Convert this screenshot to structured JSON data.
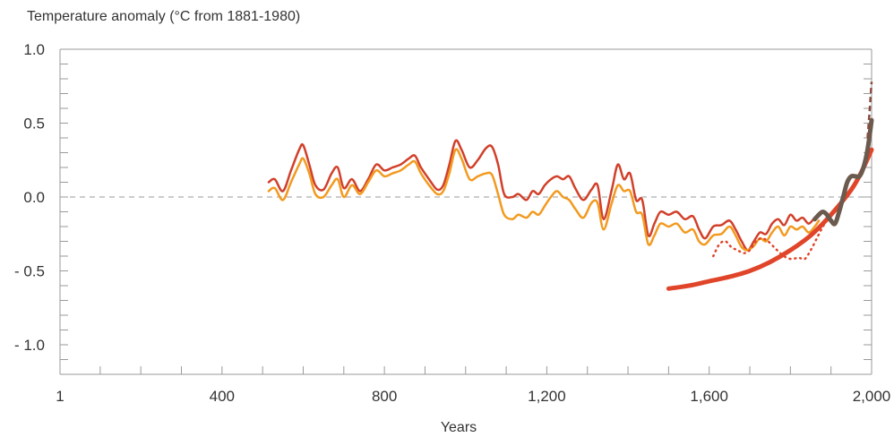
{
  "chart_data": {
    "type": "line",
    "ylabel": "Temperature anomaly (°C from 1881-1980)",
    "xlabel": "Years",
    "xlim": [
      1,
      2000
    ],
    "ylim": [
      -1.2,
      1.0
    ],
    "x_ticks": [
      1,
      400,
      800,
      1200,
      1600,
      2000
    ],
    "x_tick_labels": [
      "1",
      "400",
      "800",
      "1,200",
      "1,600",
      "2,000"
    ],
    "y_ticks": [
      1.0,
      0.5,
      0.0,
      -0.5,
      -1.0
    ],
    "y_tick_labels": [
      "1.0",
      "0.5",
      "0.0",
      "- 0.5",
      "- 1.0"
    ],
    "grid": false,
    "zero_line": true,
    "series": [
      {
        "color": "#d1402a",
        "style": "solid",
        "width": 2.5,
        "x": [
          515,
          530,
          550,
          570,
          590,
          600,
          615,
          630,
          650,
          670,
          685,
          700,
          720,
          740,
          760,
          780,
          800,
          820,
          840,
          860,
          875,
          890,
          910,
          930,
          945,
          960,
          975,
          990,
          1010,
          1030,
          1050,
          1065,
          1080,
          1095,
          1115,
          1130,
          1150,
          1165,
          1180,
          1195,
          1210,
          1225,
          1240,
          1255,
          1270,
          1290,
          1310,
          1325,
          1340,
          1360,
          1375,
          1390,
          1405,
          1420,
          1435,
          1450,
          1465,
          1480,
          1500,
          1520,
          1540,
          1560,
          1575,
          1590,
          1610,
          1630,
          1650,
          1665,
          1680,
          1695,
          1710,
          1725,
          1740,
          1755,
          1770,
          1785,
          1800,
          1815,
          1830,
          1845,
          1860,
          1870
        ],
        "y": [
          0.1,
          0.12,
          0.04,
          0.18,
          0.32,
          0.35,
          0.22,
          0.08,
          0.05,
          0.16,
          0.2,
          0.06,
          0.12,
          0.04,
          0.12,
          0.22,
          0.18,
          0.2,
          0.22,
          0.26,
          0.28,
          0.2,
          0.12,
          0.05,
          0.08,
          0.22,
          0.38,
          0.32,
          0.2,
          0.25,
          0.33,
          0.34,
          0.22,
          0.02,
          0.0,
          0.02,
          -0.02,
          0.04,
          0.02,
          0.08,
          0.12,
          0.14,
          0.12,
          0.14,
          0.06,
          -0.02,
          0.05,
          0.08,
          -0.15,
          0.05,
          0.22,
          0.12,
          0.16,
          -0.02,
          -0.02,
          -0.26,
          -0.18,
          -0.1,
          -0.12,
          -0.1,
          -0.15,
          -0.13,
          -0.22,
          -0.28,
          -0.2,
          -0.19,
          -0.16,
          -0.22,
          -0.3,
          -0.36,
          -0.3,
          -0.24,
          -0.25,
          -0.18,
          -0.15,
          -0.19,
          -0.12,
          -0.16,
          -0.14,
          -0.18,
          -0.14,
          -0.12
        ]
      },
      {
        "color": "#f29a1f",
        "style": "solid",
        "width": 2.5,
        "x": [
          515,
          530,
          550,
          570,
          590,
          600,
          615,
          630,
          650,
          670,
          685,
          700,
          720,
          740,
          760,
          780,
          800,
          820,
          840,
          860,
          875,
          890,
          910,
          930,
          945,
          960,
          975,
          990,
          1010,
          1030,
          1050,
          1065,
          1080,
          1095,
          1115,
          1130,
          1150,
          1165,
          1180,
          1195,
          1210,
          1225,
          1240,
          1255,
          1270,
          1290,
          1310,
          1325,
          1340,
          1360,
          1375,
          1390,
          1405,
          1420,
          1435,
          1450,
          1465,
          1480,
          1500,
          1520,
          1540,
          1560,
          1575,
          1590,
          1610,
          1630,
          1650,
          1665,
          1680,
          1695,
          1710,
          1725,
          1740,
          1755,
          1770,
          1785,
          1800,
          1815,
          1830,
          1845,
          1860,
          1870
        ],
        "y": [
          0.04,
          0.06,
          -0.02,
          0.1,
          0.22,
          0.26,
          0.16,
          0.02,
          0.0,
          0.08,
          0.12,
          0.0,
          0.08,
          0.02,
          0.1,
          0.18,
          0.14,
          0.16,
          0.18,
          0.22,
          0.24,
          0.16,
          0.08,
          0.02,
          0.04,
          0.16,
          0.32,
          0.26,
          0.12,
          0.14,
          0.16,
          0.15,
          0.02,
          -0.12,
          -0.15,
          -0.12,
          -0.14,
          -0.1,
          -0.12,
          -0.06,
          0.0,
          0.04,
          0.0,
          -0.02,
          -0.08,
          -0.14,
          -0.04,
          -0.04,
          -0.22,
          -0.04,
          0.08,
          0.04,
          0.04,
          -0.1,
          -0.12,
          -0.32,
          -0.26,
          -0.18,
          -0.2,
          -0.18,
          -0.24,
          -0.22,
          -0.3,
          -0.32,
          -0.26,
          -0.25,
          -0.2,
          -0.26,
          -0.34,
          -0.36,
          -0.33,
          -0.28,
          -0.3,
          -0.24,
          -0.2,
          -0.26,
          -0.2,
          -0.22,
          -0.2,
          -0.24,
          -0.2,
          -0.16
        ]
      },
      {
        "color": "#e0452a",
        "style": "dotted",
        "width": 2,
        "x": [
          1610,
          1625,
          1640,
          1655,
          1670,
          1685,
          1700,
          1715,
          1730,
          1745,
          1760,
          1775,
          1790,
          1805,
          1820,
          1835,
          1850,
          1865,
          1880,
          1895
        ],
        "y": [
          -0.4,
          -0.32,
          -0.3,
          -0.34,
          -0.36,
          -0.38,
          -0.36,
          -0.3,
          -0.28,
          -0.3,
          -0.34,
          -0.38,
          -0.41,
          -0.42,
          -0.41,
          -0.42,
          -0.36,
          -0.28,
          -0.2,
          -0.14
        ]
      },
      {
        "color": "#e0452a",
        "style": "solid",
        "width": 5,
        "x": [
          1500,
          1550,
          1600,
          1650,
          1700,
          1750,
          1800,
          1850,
          1900,
          1950,
          1975,
          2000
        ],
        "y": [
          -0.62,
          -0.6,
          -0.57,
          -0.54,
          -0.5,
          -0.44,
          -0.36,
          -0.26,
          -0.12,
          0.05,
          0.17,
          0.32
        ]
      },
      {
        "color": "#6b5a4e",
        "style": "solid",
        "width": 5,
        "x": [
          1860,
          1870,
          1880,
          1890,
          1900,
          1910,
          1920,
          1930,
          1940,
          1950,
          1960,
          1970,
          1980,
          1990,
          2000
        ],
        "y": [
          -0.15,
          -0.12,
          -0.1,
          -0.12,
          -0.16,
          -0.18,
          -0.1,
          0.0,
          0.1,
          0.14,
          0.14,
          0.14,
          0.2,
          0.32,
          0.52
        ]
      },
      {
        "color": "#8a4a3e",
        "style": "dashed",
        "width": 2.5,
        "x": [
          1990,
          1995,
          2000
        ],
        "y": [
          0.4,
          0.58,
          0.78
        ]
      }
    ]
  }
}
